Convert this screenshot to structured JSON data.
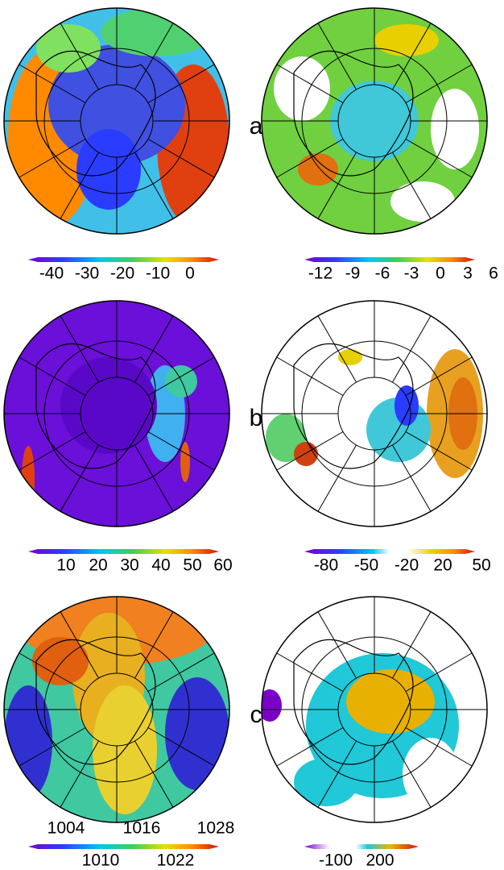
{
  "panels": [
    {
      "label": "a",
      "left": {
        "ticks": [
          -40,
          -30,
          -20,
          -10,
          0
        ]
      },
      "right": {
        "ticks": [
          -12,
          -9,
          -6,
          -3,
          0,
          3,
          6
        ]
      }
    },
    {
      "label": "b",
      "left": {
        "ticks": [
          10,
          20,
          30,
          40,
          50,
          60
        ]
      },
      "right": {
        "ticks": [
          -80,
          -50,
          -20,
          20,
          50
        ]
      }
    },
    {
      "label": "c",
      "left": {
        "ticks": [
          1004,
          1010,
          1016,
          1022,
          1028
        ]
      },
      "right": {
        "ticks": [
          -100,
          200
        ]
      }
    }
  ]
}
